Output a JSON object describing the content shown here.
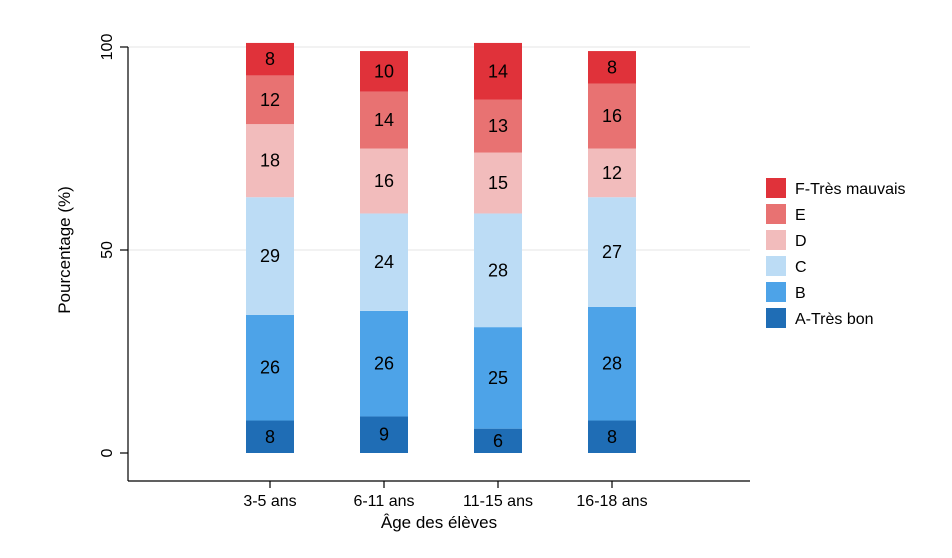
{
  "chart_data": {
    "type": "bar",
    "stacked": true,
    "xlabel": "Âge des élèves",
    "ylabel": "Pourcentage (%)",
    "ylim": [
      0,
      100
    ],
    "yticks": [
      0,
      50,
      100
    ],
    "grid": true,
    "legend_position": "right",
    "categories": [
      "3-5 ans",
      "6-11 ans",
      "11-15 ans",
      "16-18 ans"
    ],
    "series": [
      {
        "name": "A-Très bon",
        "color": "#1f6db5",
        "values": [
          8,
          9,
          6,
          8
        ]
      },
      {
        "name": "B",
        "color": "#4da3e8",
        "values": [
          26,
          26,
          25,
          28
        ]
      },
      {
        "name": "C",
        "color": "#bcdcf5",
        "values": [
          29,
          24,
          28,
          27
        ]
      },
      {
        "name": "D",
        "color": "#f2bcbc",
        "values": [
          18,
          16,
          15,
          12
        ]
      },
      {
        "name": "E",
        "color": "#e87272",
        "values": [
          12,
          14,
          13,
          16
        ]
      },
      {
        "name": "F-Très mauvais",
        "color": "#e0323a",
        "values": [
          8,
          10,
          14,
          8
        ]
      }
    ]
  }
}
